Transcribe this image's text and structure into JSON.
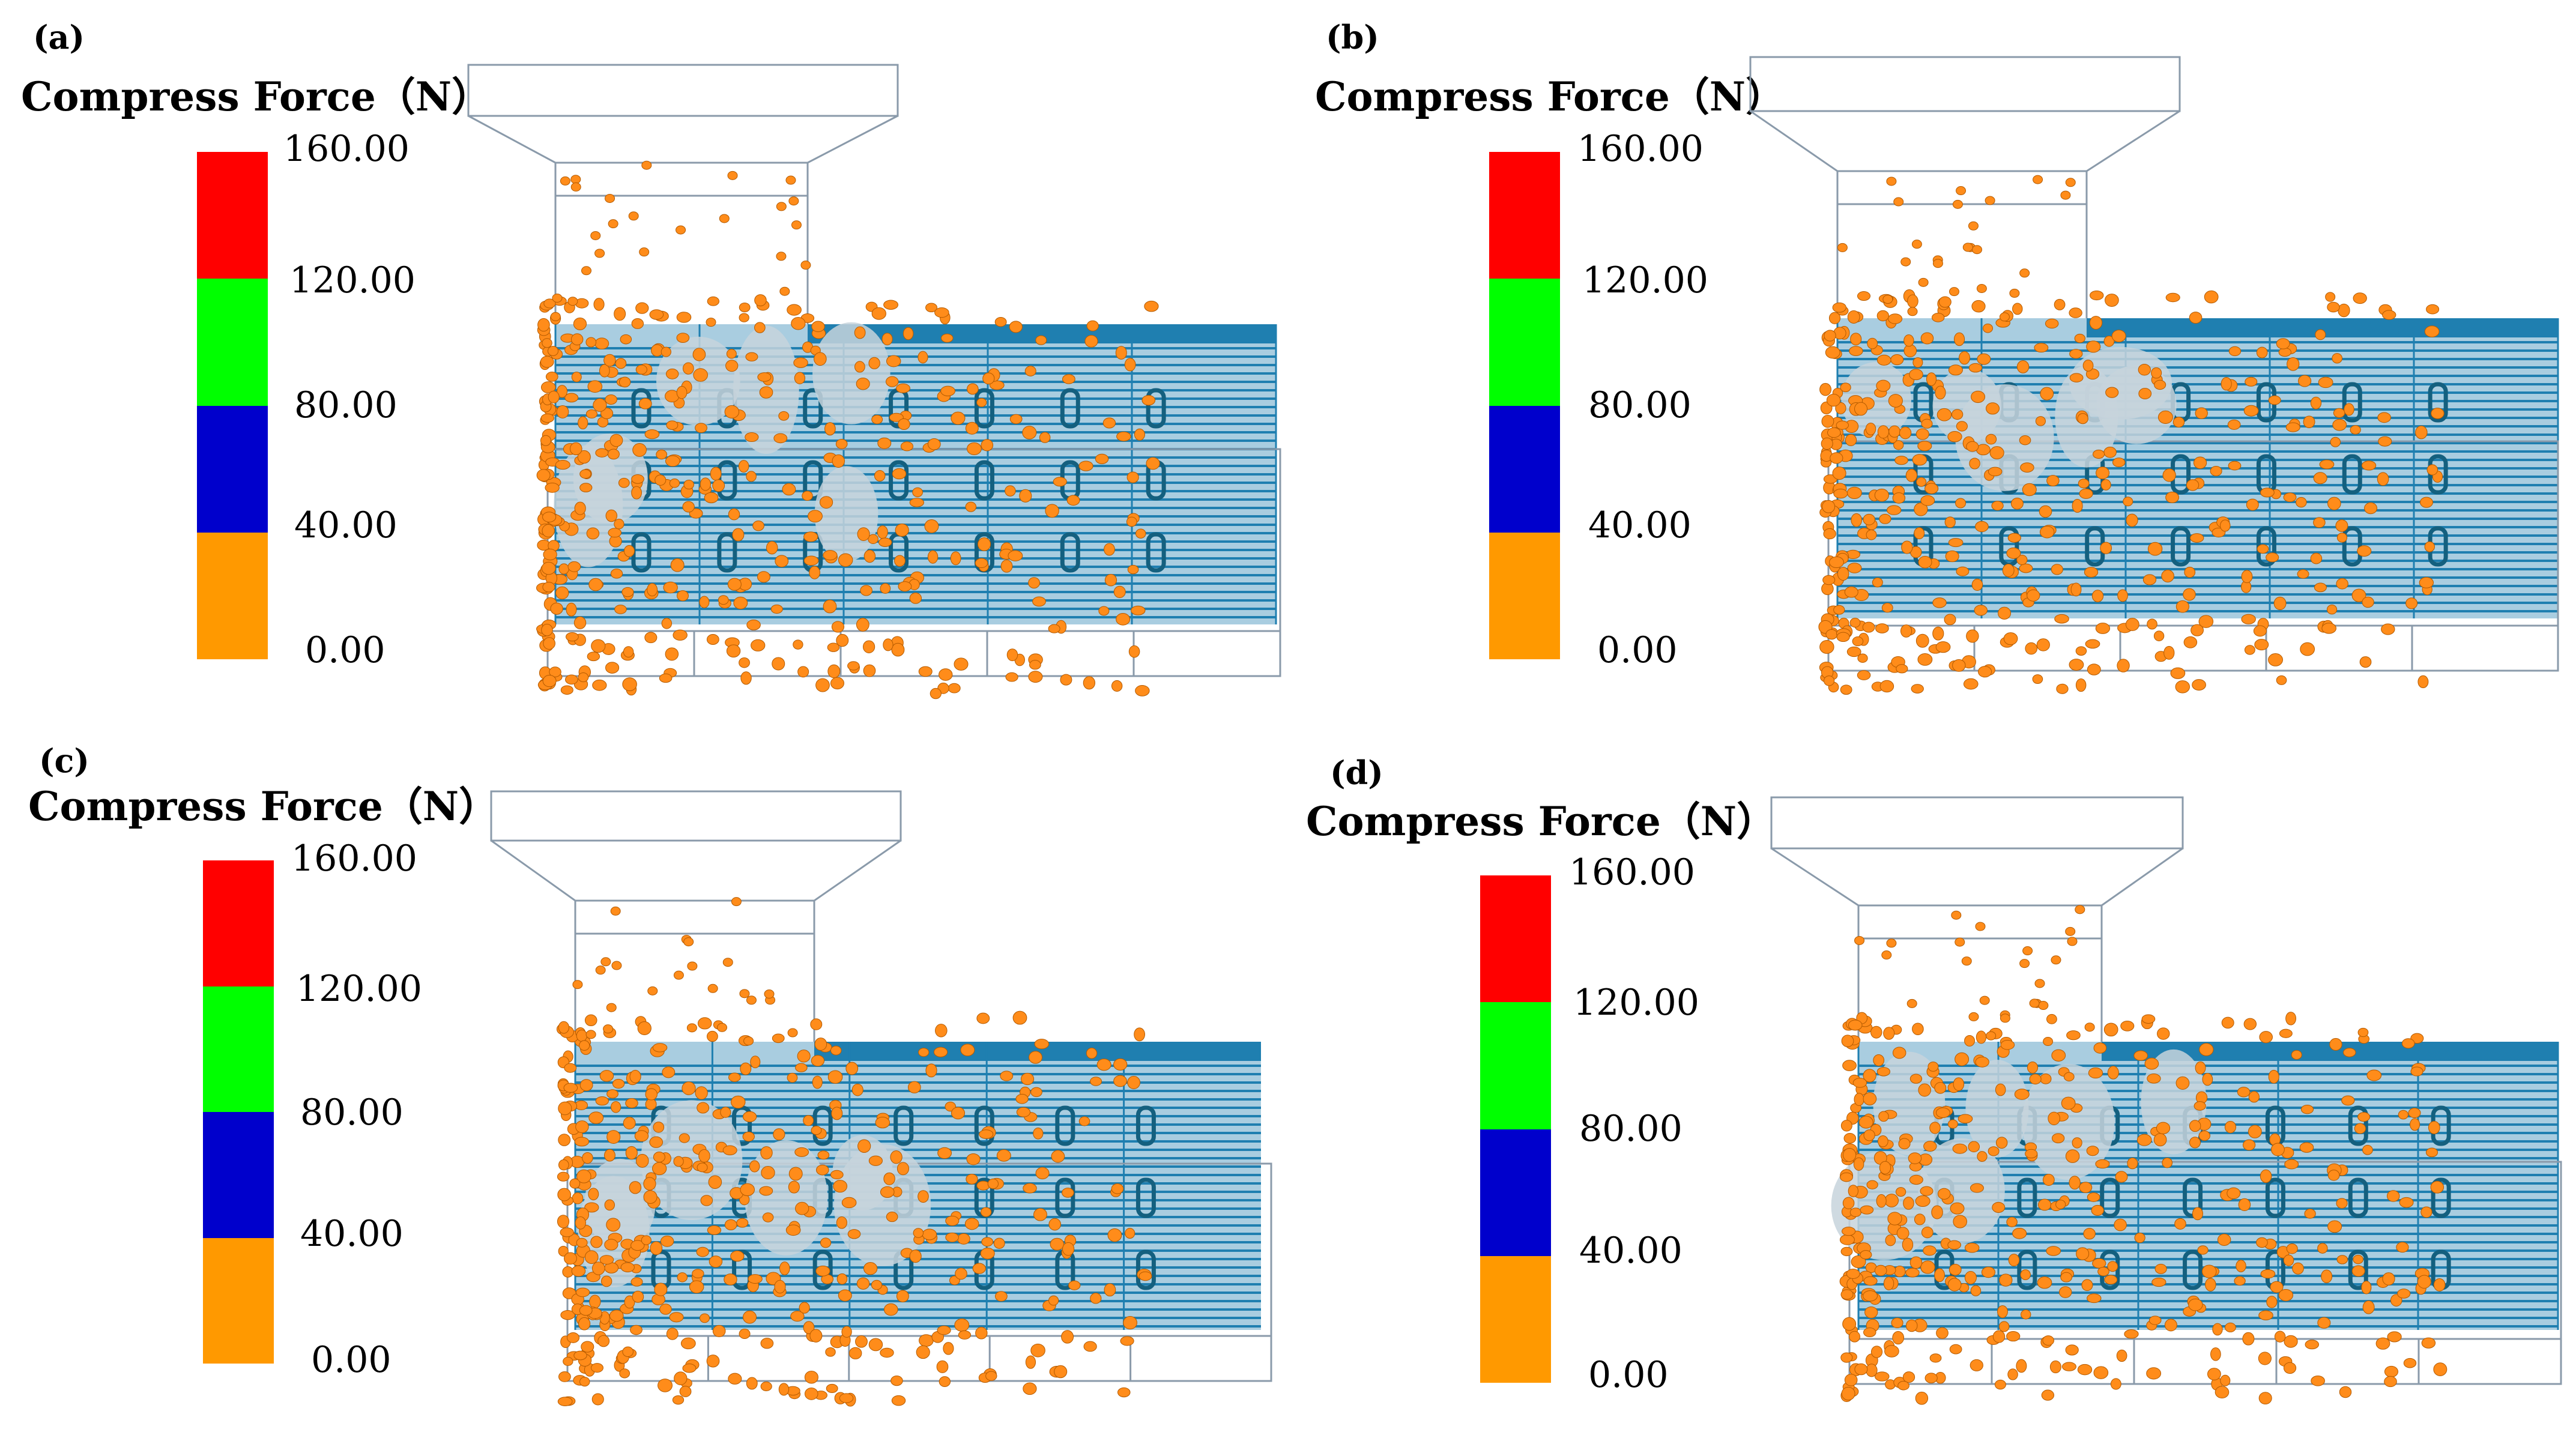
{
  "legend": {
    "title": "Compress Force（N）",
    "ticks": [
      "160.00",
      "120.00",
      "80.00",
      "40.00",
      "0.00"
    ],
    "colors": [
      "#ff0000",
      "#00ff00",
      "#0000cc",
      "#ff9900"
    ]
  },
  "panels": [
    {
      "letter": "(a)"
    },
    {
      "letter": "(b)"
    },
    {
      "letter": "(c)"
    },
    {
      "letter": "(d)"
    }
  ],
  "colors": {
    "machine_blue": "#1f7fb0",
    "particle_orange": "#ff8c1a",
    "outline_gray": "#8a9aaa"
  }
}
